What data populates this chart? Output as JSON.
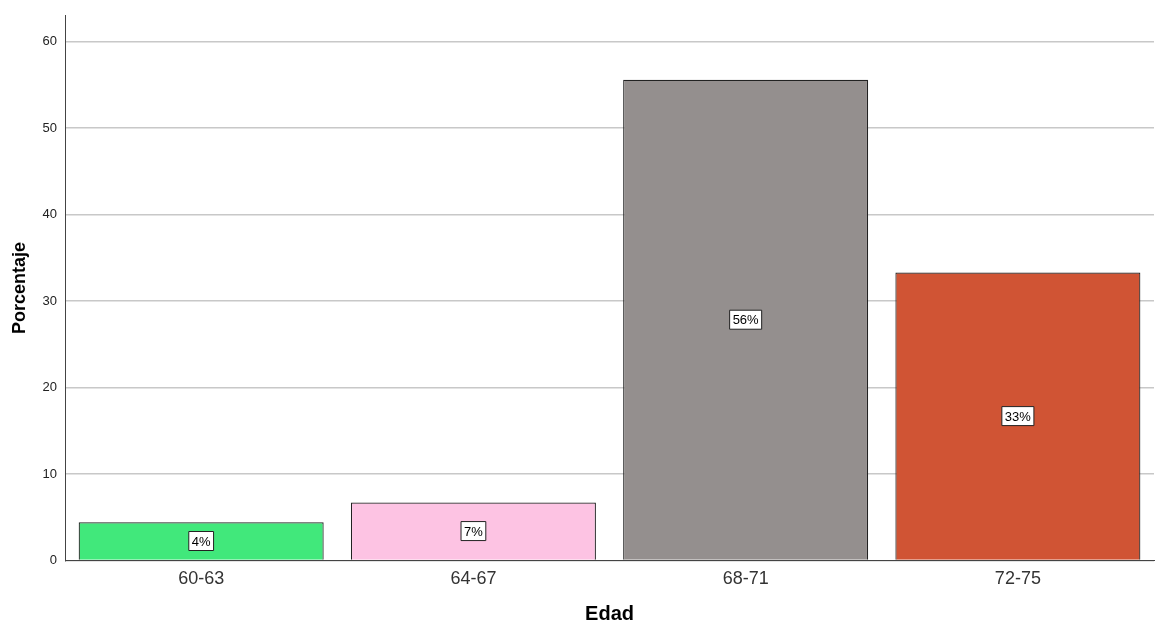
{
  "chart_data": {
    "type": "bar",
    "xlabel": "Edad",
    "ylabel": "Porcentaje",
    "categories": [
      "60-63",
      "64-67",
      "68-71",
      "72-75"
    ],
    "values": [
      4.4,
      6.7,
      55.6,
      33.3
    ],
    "colors": [
      "#41e87b",
      "#fdc3e3",
      "#948f8e",
      "#d05434"
    ],
    "value_labels": [
      "4%",
      "7%",
      "56%",
      "33%"
    ],
    "ylim": [
      0,
      63
    ],
    "yticks": [
      0,
      10,
      20,
      30,
      40,
      50,
      60
    ],
    "grid": "y"
  }
}
